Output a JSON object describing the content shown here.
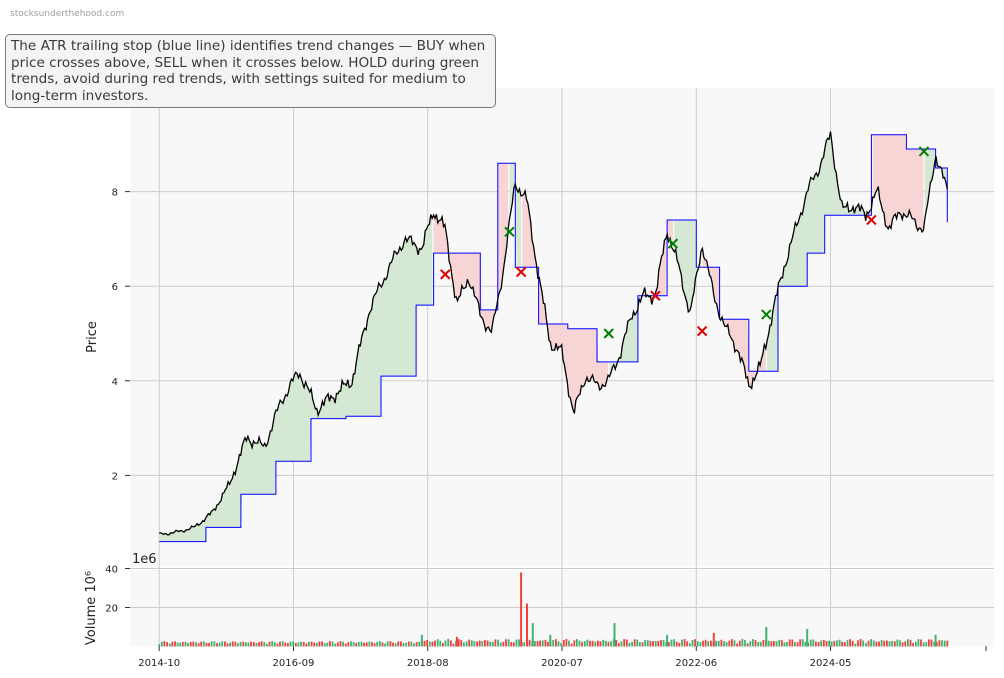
{
  "watermark": "stocksunderthehood.com",
  "annotation": "The ATR trailing stop (blue line) identifies trend changes — BUY when price crosses above, SELL when it crosses below. HOLD during green trends, avoid during red trends, with settings suited for medium to long-term investors.",
  "colors": {
    "price": "#000000",
    "stop": "#0000ff",
    "bull_fill": "#d5e8d4",
    "bear_fill": "#f8d5d5",
    "buy_marker": "#008000",
    "sell_marker": "#e00000",
    "vol_up": "#3cb371",
    "vol_down": "#f04040",
    "panel_bg": "#f8f8f8",
    "grid": "#cccccc"
  },
  "chart_data": [
    {
      "type": "line",
      "ylabel": "Price",
      "ylim": [
        0,
        10
      ],
      "yticks": [
        2,
        4,
        6,
        8
      ],
      "xlim": [
        "2014-05",
        "2026-09"
      ],
      "x_tick_labels": [
        "2014-10",
        "2016-09",
        "2018-08",
        "2020-07",
        "2022-06",
        "2024-05"
      ],
      "grid": true,
      "series": [
        {
          "key": "price",
          "x": [
            "2014-10",
            "2015-01",
            "2015-04",
            "2015-07",
            "2015-10",
            "2016-01",
            "2016-04",
            "2016-07",
            "2016-10",
            "2017-01",
            "2017-04",
            "2017-07",
            "2017-10",
            "2018-01",
            "2018-04",
            "2018-07",
            "2018-09",
            "2018-11",
            "2019-01",
            "2019-03",
            "2019-05",
            "2019-07",
            "2019-09",
            "2019-11",
            "2020-01",
            "2020-03",
            "2020-05",
            "2020-07",
            "2020-09",
            "2020-11",
            "2021-01",
            "2021-03",
            "2021-05",
            "2021-07",
            "2021-09",
            "2021-11",
            "2022-01",
            "2022-03",
            "2022-05",
            "2022-07",
            "2022-09",
            "2022-11",
            "2023-01",
            "2023-03",
            "2023-05",
            "2023-07",
            "2023-09",
            "2023-11",
            "2024-01",
            "2024-03",
            "2024-05",
            "2024-07",
            "2024-09",
            "2024-11",
            "2025-01",
            "2025-03",
            "2025-05",
            "2025-07",
            "2025-09",
            "2025-11",
            "2026-01"
          ],
          "values": [
            0.75,
            0.8,
            0.9,
            1.2,
            1.8,
            2.8,
            2.6,
            3.6,
            4.2,
            3.4,
            3.7,
            4.0,
            5.5,
            6.3,
            7.0,
            6.8,
            7.6,
            7.2,
            5.6,
            6.2,
            5.4,
            5.0,
            6.4,
            8.2,
            7.8,
            6.2,
            4.8,
            4.6,
            3.3,
            4.1,
            3.9,
            4.0,
            4.6,
            5.4,
            5.8,
            5.8,
            7.2,
            6.4,
            5.4,
            6.9,
            5.8,
            5.1,
            4.7,
            3.9,
            4.3,
            5.4,
            6.4,
            7.2,
            8.0,
            8.5,
            9.2,
            7.6,
            7.7,
            7.5,
            8.0,
            7.2,
            7.6,
            7.4,
            7.2,
            8.8,
            8.0
          ]
        },
        {
          "key": "stop",
          "name": "ATR trailing stop",
          "x": [
            "2014-10",
            "2015-06",
            "2015-12",
            "2016-06",
            "2016-12",
            "2017-06",
            "2017-12",
            "2018-06",
            "2018-09",
            "2019-02",
            "2019-05",
            "2019-08",
            "2019-11",
            "2020-03",
            "2020-08",
            "2021-01",
            "2021-06",
            "2021-08",
            "2022-01",
            "2022-06",
            "2022-10",
            "2023-03",
            "2023-08",
            "2024-01",
            "2024-04",
            "2024-07",
            "2024-12",
            "2025-06",
            "2025-11",
            "2026-01"
          ],
          "values": [
            0.6,
            0.9,
            1.6,
            2.3,
            3.2,
            3.25,
            4.1,
            5.6,
            6.7,
            6.7,
            5.5,
            8.6,
            6.4,
            5.2,
            5.1,
            4.4,
            4.4,
            5.8,
            7.4,
            6.4,
            5.3,
            4.2,
            6.0,
            6.7,
            7.5,
            7.5,
            9.2,
            8.9,
            8.5,
            7.35
          ]
        }
      ],
      "signals": {
        "buy": [
          [
            "2019-10",
            7.15
          ],
          [
            "2021-03",
            5.0
          ],
          [
            "2022-02",
            6.9
          ],
          [
            "2023-06",
            5.4
          ],
          [
            "2025-09",
            8.85
          ]
        ],
        "sell": [
          [
            "2018-11",
            6.25
          ],
          [
            "2019-12",
            6.3
          ],
          [
            "2021-11",
            5.8
          ],
          [
            "2022-07",
            5.05
          ],
          [
            "2024-12",
            7.4
          ]
        ]
      },
      "fill_regions": [
        {
          "trend": "bull",
          "from": "2014-10",
          "to": "2018-09"
        },
        {
          "trend": "bear",
          "from": "2018-09",
          "to": "2019-10"
        },
        {
          "trend": "bull",
          "from": "2019-10",
          "to": "2019-12"
        },
        {
          "trend": "bear",
          "from": "2019-12",
          "to": "2021-03"
        },
        {
          "trend": "bull",
          "from": "2021-03",
          "to": "2021-11"
        },
        {
          "trend": "bear",
          "from": "2021-11",
          "to": "2022-02"
        },
        {
          "trend": "bull",
          "from": "2022-02",
          "to": "2022-07"
        },
        {
          "trend": "bear",
          "from": "2022-07",
          "to": "2023-06"
        },
        {
          "trend": "bull",
          "from": "2023-06",
          "to": "2024-12"
        },
        {
          "trend": "bear",
          "from": "2024-12",
          "to": "2025-09"
        },
        {
          "trend": "bull",
          "from": "2025-09",
          "to": "2026-01"
        }
      ]
    },
    {
      "type": "bar",
      "ylabel": "Volume",
      "ylabel_unit": "10⁶",
      "offset_text": "1e6",
      "yticks": [
        20,
        40
      ],
      "ylim": [
        0,
        40
      ],
      "baseline_millions": 1.2,
      "spikes": [
        {
          "x": "2019-12",
          "value": 38,
          "color": "down"
        },
        {
          "x": "2020-01",
          "value": 22,
          "color": "down"
        },
        {
          "x": "2020-02",
          "value": 12,
          "color": "up"
        },
        {
          "x": "2018-07",
          "value": 6,
          "color": "up"
        },
        {
          "x": "2019-01",
          "value": 5,
          "color": "down"
        },
        {
          "x": "2020-05",
          "value": 6,
          "color": "up"
        },
        {
          "x": "2021-04",
          "value": 12,
          "color": "up"
        },
        {
          "x": "2022-01",
          "value": 6,
          "color": "up"
        },
        {
          "x": "2022-09",
          "value": 7,
          "color": "down"
        },
        {
          "x": "2023-06",
          "value": 10,
          "color": "up"
        },
        {
          "x": "2024-01",
          "value": 9,
          "color": "up"
        },
        {
          "x": "2025-11",
          "value": 6,
          "color": "up"
        }
      ]
    }
  ]
}
